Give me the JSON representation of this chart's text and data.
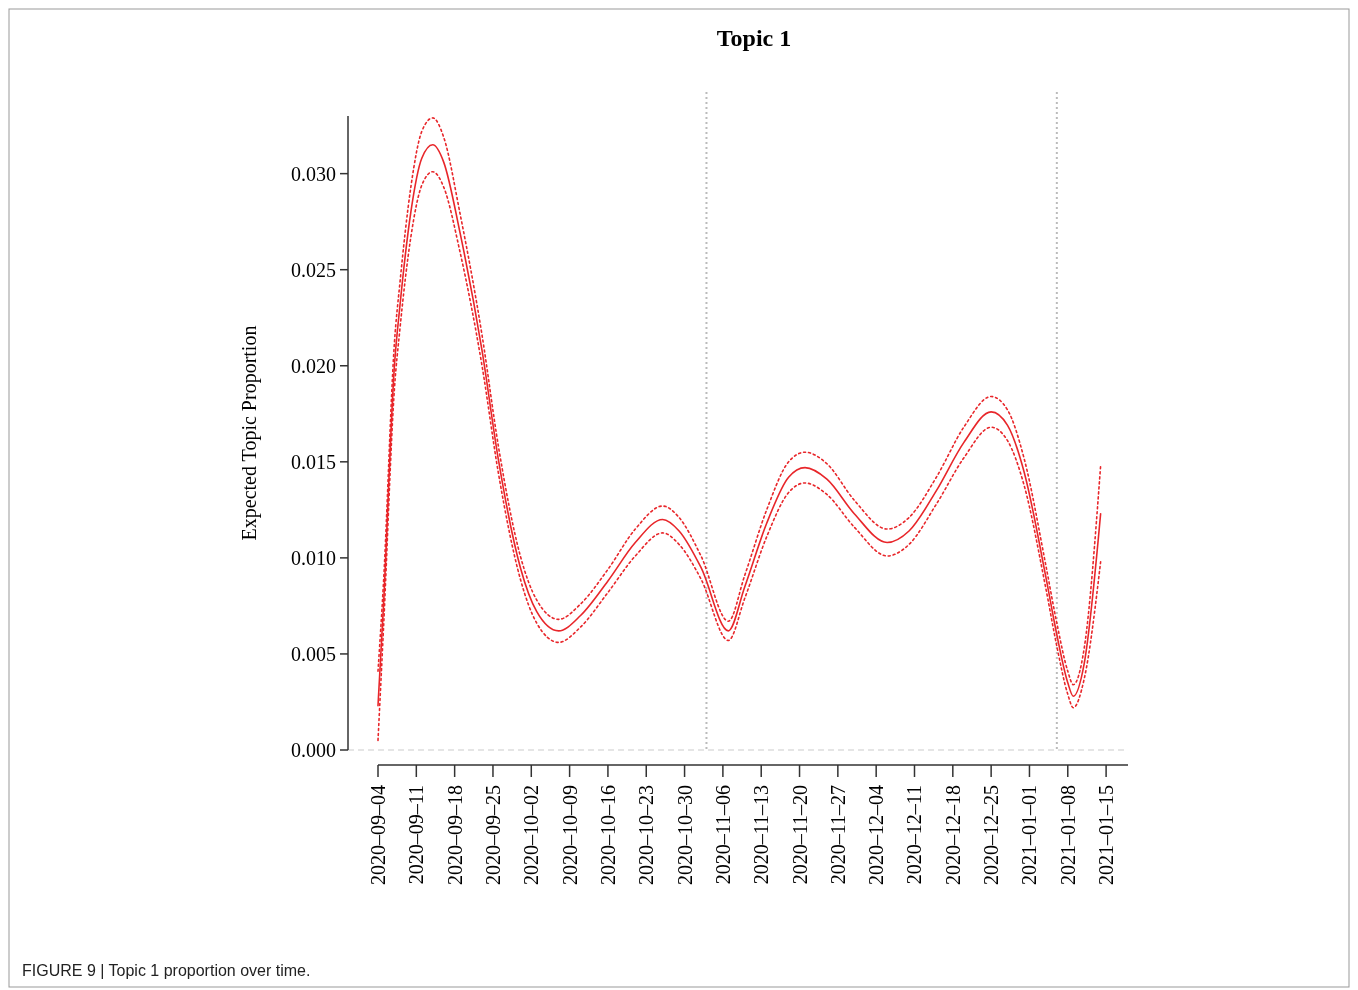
{
  "chart_data": {
    "type": "line",
    "title": "Topic 1",
    "ylabel": "Expected Topic Proportion",
    "annotations": [
      "FIGURE 9 | Topic 1 proportion over time."
    ],
    "xlim": [
      "2020-09-04",
      "2021-01-19"
    ],
    "xticks": [
      {
        "value": "2020-09-04",
        "label": "2020–09–04"
      },
      {
        "value": "2020-09-11",
        "label": "2020–09–11"
      },
      {
        "value": "2020-09-18",
        "label": "2020–09–18"
      },
      {
        "value": "2020-09-25",
        "label": "2020–09–25"
      },
      {
        "value": "2020-10-02",
        "label": "2020–10–02"
      },
      {
        "value": "2020-10-09",
        "label": "2020–10–09"
      },
      {
        "value": "2020-10-16",
        "label": "2020–10–16"
      },
      {
        "value": "2020-10-23",
        "label": "2020–10–23"
      },
      {
        "value": "2020-10-30",
        "label": "2020–10–30"
      },
      {
        "value": "2020-11-06",
        "label": "2020–11–06"
      },
      {
        "value": "2020-11-13",
        "label": "2020–11–13"
      },
      {
        "value": "2020-11-20",
        "label": "2020–11–20"
      },
      {
        "value": "2020-11-27",
        "label": "2020–11–27"
      },
      {
        "value": "2020-12-04",
        "label": "2020–12–04"
      },
      {
        "value": "2020-12-11",
        "label": "2020–12–11"
      },
      {
        "value": "2020-12-18",
        "label": "2020–12–18"
      },
      {
        "value": "2020-12-25",
        "label": "2020–12–25"
      },
      {
        "value": "2021-01-01",
        "label": "2021–01–01"
      },
      {
        "value": "2021-01-08",
        "label": "2021–01–08"
      },
      {
        "value": "2021-01-15",
        "label": "2021–01–15"
      }
    ],
    "ylim": [
      0,
      0.033
    ],
    "yticks": [
      {
        "value": 0,
        "label": "0.000"
      },
      {
        "value": 0.005,
        "label": "0.005"
      },
      {
        "value": 0.01,
        "label": "0.010"
      },
      {
        "value": 0.015,
        "label": "0.015"
      },
      {
        "value": 0.02,
        "label": "0.020"
      },
      {
        "value": 0.025,
        "label": "0.025"
      },
      {
        "value": 0.03,
        "label": "0.030"
      }
    ],
    "ref_lines": [
      {
        "axis": "x",
        "value": "2020-11-03",
        "color": "#bbbbbb",
        "line_style": "dotted"
      },
      {
        "axis": "x",
        "value": "2021-01-06",
        "color": "#bbbbbb",
        "line_style": "dotted"
      },
      {
        "axis": "y",
        "value": 0,
        "color": "#dddddd",
        "line_style": "dashed"
      }
    ],
    "line_style": "solid",
    "x": [
      "2020-09-04",
      "2020-09-05",
      "2020-09-07",
      "2020-09-08",
      "2020-09-10",
      "2020-09-12",
      "2020-09-14",
      "2020-09-16",
      "2020-09-19",
      "2020-09-23",
      "2020-09-26",
      "2020-09-30",
      "2020-10-03",
      "2020-10-07",
      "2020-10-11",
      "2020-10-16",
      "2020-10-21",
      "2020-10-26",
      "2020-10-29",
      "2020-11-02",
      "2020-11-07",
      "2020-11-10",
      "2020-11-14",
      "2020-11-18",
      "2020-11-21",
      "2020-11-25",
      "2020-11-30",
      "2020-12-06",
      "2020-12-10",
      "2020-12-15",
      "2020-12-20",
      "2020-12-25",
      "2020-12-28",
      "2020-12-31",
      "2021-01-04",
      "2021-01-06",
      "2021-01-08",
      "2021-01-09",
      "2021-01-11",
      "2021-01-14"
    ],
    "series": [
      {
        "color": "#e8262a",
        "values": [
          0.0023,
          0.0075,
          0.02,
          0.0231,
          0.028,
          0.0308,
          0.0315,
          0.0306,
          0.0269,
          0.0208,
          0.0151,
          0.0095,
          0.0072,
          0.0062,
          0.007,
          0.0088,
          0.0108,
          0.012,
          0.0114,
          0.0095,
          0.0062,
          0.0085,
          0.0118,
          0.0142,
          0.0147,
          0.0141,
          0.0123,
          0.0108,
          0.0114,
          0.0135,
          0.016,
          0.0176,
          0.0169,
          0.0145,
          0.009,
          0.006,
          0.0035,
          0.0028,
          0.0045,
          0.0123
        ]
      },
      {
        "color": "#e8262a",
        "line_style": "dotted",
        "values": [
          0.0005,
          0.0063,
          0.0188,
          0.0219,
          0.0267,
          0.0294,
          0.0301,
          0.0293,
          0.0259,
          0.02,
          0.0144,
          0.0089,
          0.0066,
          0.0056,
          0.0064,
          0.0082,
          0.0101,
          0.0113,
          0.0107,
          0.0089,
          0.0057,
          0.0079,
          0.0111,
          0.0134,
          0.0139,
          0.0133,
          0.0116,
          0.0101,
          0.0107,
          0.0128,
          0.0152,
          0.0168,
          0.0161,
          0.0138,
          0.0084,
          0.0054,
          0.0029,
          0.0022,
          0.0037,
          0.0098
        ]
      },
      {
        "color": "#e8262a",
        "line_style": "dotted",
        "values": [
          0.0041,
          0.0087,
          0.0212,
          0.0243,
          0.0293,
          0.0322,
          0.0329,
          0.0319,
          0.0279,
          0.0216,
          0.0158,
          0.0101,
          0.0078,
          0.0068,
          0.0076,
          0.0094,
          0.0115,
          0.0127,
          0.0121,
          0.0101,
          0.0067,
          0.0091,
          0.0125,
          0.015,
          0.0155,
          0.0149,
          0.013,
          0.0115,
          0.0121,
          0.0142,
          0.0168,
          0.0184,
          0.0177,
          0.0152,
          0.0096,
          0.0066,
          0.0041,
          0.0034,
          0.0053,
          0.0148
        ]
      }
    ]
  }
}
